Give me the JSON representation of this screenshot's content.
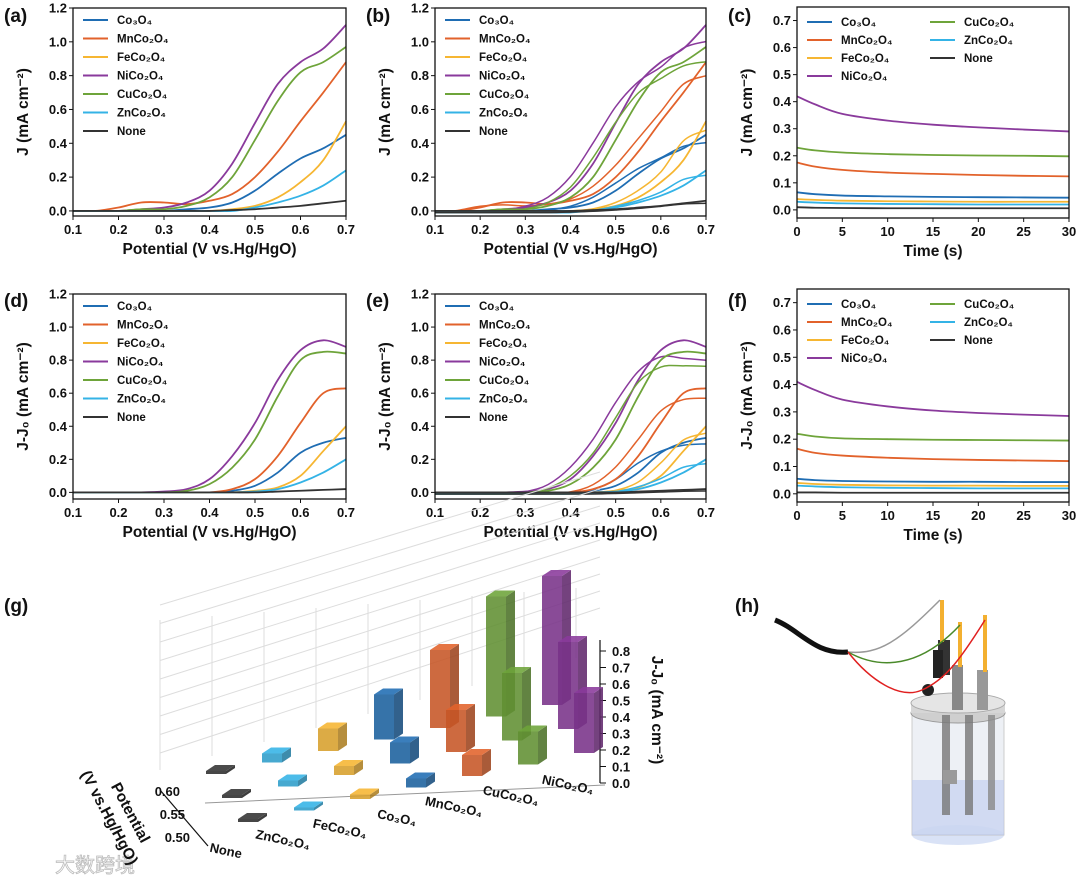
{
  "colors": {
    "Co3O4": "#1f6db3",
    "MnCo2O4": "#e2622b",
    "FeCo2O4": "#f6b632",
    "NiCo2O4": "#8a3a9c",
    "CuCo2O4": "#6ea43a",
    "ZnCo2O4": "#34b3e6",
    "None": "#333333"
  },
  "watermark": "大数跨境",
  "chart_data": [
    {
      "panel": "(a)",
      "type": "line",
      "xlabel": "Potential (V vs.Hg/HgO)",
      "ylabel": "J (mA cm⁻²)",
      "xlim": [
        0.1,
        0.7
      ],
      "ylim": [
        -0.03,
        1.2
      ],
      "xticks": [
        "0.1",
        "0.2",
        "0.3",
        "0.4",
        "0.5",
        "0.6",
        "0.7"
      ],
      "yticks": [
        "0.0",
        "0.2",
        "0.4",
        "0.6",
        "0.8",
        "1.0",
        "1.2"
      ],
      "legend": "top-left",
      "loop": false,
      "x": [
        0.1,
        0.15,
        0.2,
        0.25,
        0.3,
        0.35,
        0.4,
        0.45,
        0.5,
        0.55,
        0.6,
        0.65,
        0.7
      ],
      "series": [
        {
          "key": "Co3O4",
          "name": "Co₃O₄",
          "y": [
            0,
            0,
            0,
            0,
            0,
            0.01,
            0.02,
            0.05,
            0.12,
            0.22,
            0.31,
            0.37,
            0.45
          ]
        },
        {
          "key": "MnCo2O4",
          "name": "MnCo₂O₄",
          "y": [
            0,
            0,
            0.02,
            0.05,
            0.05,
            0.04,
            0.06,
            0.1,
            0.2,
            0.35,
            0.53,
            0.7,
            0.88
          ]
        },
        {
          "key": "FeCo2O4",
          "name": "FeCo₂O₄",
          "y": [
            0,
            0,
            0,
            0,
            0,
            0,
            0,
            0.01,
            0.03,
            0.08,
            0.17,
            0.3,
            0.53
          ]
        },
        {
          "key": "NiCo2O4",
          "name": "NiCo₂O₄",
          "y": [
            0,
            0,
            0,
            0.01,
            0.02,
            0.05,
            0.12,
            0.28,
            0.52,
            0.75,
            0.88,
            0.96,
            1.1
          ]
        },
        {
          "key": "CuCo2O4",
          "name": "CuCo₂O₄",
          "y": [
            0,
            0,
            0,
            0.01,
            0.01,
            0.03,
            0.08,
            0.2,
            0.42,
            0.65,
            0.82,
            0.88,
            0.97
          ]
        },
        {
          "key": "ZnCo2O4",
          "name": "ZnCo₂O₄",
          "y": [
            0,
            0,
            0,
            0,
            0,
            0,
            0,
            0,
            0.02,
            0.05,
            0.09,
            0.15,
            0.24
          ]
        },
        {
          "key": "None",
          "name": "None",
          "y": [
            0,
            0,
            0,
            0,
            0,
            0,
            0,
            0.005,
            0.01,
            0.02,
            0.03,
            0.045,
            0.06
          ]
        }
      ]
    },
    {
      "panel": "(b)",
      "type": "line",
      "xlabel": "Potential (V vs.Hg/HgO)",
      "ylabel": "J (mA cm⁻²)",
      "xlim": [
        0.1,
        0.7
      ],
      "ylim": [
        -0.03,
        1.2
      ],
      "xticks": [
        "0.1",
        "0.2",
        "0.3",
        "0.4",
        "0.5",
        "0.6",
        "0.7"
      ],
      "yticks": [
        "0.0",
        "0.2",
        "0.4",
        "0.6",
        "0.8",
        "1.0",
        "1.2"
      ],
      "legend": "top-left",
      "loop": true,
      "x": [
        0.1,
        0.15,
        0.2,
        0.25,
        0.3,
        0.35,
        0.4,
        0.45,
        0.5,
        0.55,
        0.6,
        0.65,
        0.7
      ],
      "series": [
        {
          "key": "Co3O4",
          "name": "Co₃O₄",
          "y": [
            0,
            0,
            0,
            0,
            0,
            0.01,
            0.02,
            0.05,
            0.12,
            0.22,
            0.31,
            0.37,
            0.45
          ]
        },
        {
          "key": "MnCo2O4",
          "name": "MnCo₂O₄",
          "y": [
            0,
            0,
            0.02,
            0.05,
            0.05,
            0.04,
            0.06,
            0.1,
            0.2,
            0.35,
            0.53,
            0.7,
            0.88
          ]
        },
        {
          "key": "FeCo2O4",
          "name": "FeCo₂O₄",
          "y": [
            0,
            0,
            0,
            0,
            0,
            0,
            0,
            0.01,
            0.03,
            0.08,
            0.17,
            0.3,
            0.53
          ]
        },
        {
          "key": "NiCo2O4",
          "name": "NiCo₂O₄",
          "y": [
            0,
            0,
            0,
            0.01,
            0.02,
            0.05,
            0.12,
            0.28,
            0.52,
            0.75,
            0.88,
            0.96,
            1.1
          ]
        },
        {
          "key": "CuCo2O4",
          "name": "CuCo₂O₄",
          "y": [
            0,
            0,
            0,
            0.01,
            0.01,
            0.03,
            0.08,
            0.2,
            0.42,
            0.65,
            0.82,
            0.88,
            0.97
          ]
        },
        {
          "key": "ZnCo2O4",
          "name": "ZnCo₂O₄",
          "y": [
            0,
            0,
            0,
            0,
            0,
            0,
            0,
            0,
            0.02,
            0.05,
            0.09,
            0.15,
            0.24
          ]
        },
        {
          "key": "None",
          "name": "None",
          "y": [
            0,
            0,
            0,
            0,
            0,
            0,
            0,
            0.005,
            0.01,
            0.02,
            0.03,
            0.045,
            0.06
          ]
        }
      ]
    },
    {
      "panel": "(c)",
      "type": "line",
      "xlabel": "Time (s)",
      "ylabel": "J (mA cm⁻²)",
      "xlim": [
        0,
        30
      ],
      "ylim": [
        -0.03,
        0.75
      ],
      "xticks": [
        "0",
        "5",
        "10",
        "15",
        "20",
        "25",
        "30"
      ],
      "yticks": [
        "0.0",
        "0.1",
        "0.2",
        "0.3",
        "0.4",
        "0.5",
        "0.6",
        "0.7"
      ],
      "legend": "top-two-column",
      "loop": false,
      "x": [
        0,
        2,
        5,
        10,
        15,
        20,
        25,
        30
      ],
      "series": [
        {
          "key": "Co3O4",
          "name": "Co₃O₄",
          "y": [
            0.065,
            0.058,
            0.053,
            0.05,
            0.048,
            0.047,
            0.046,
            0.045
          ]
        },
        {
          "key": "MnCo2O4",
          "name": "MnCo₂O₄",
          "y": [
            0.175,
            0.16,
            0.148,
            0.138,
            0.133,
            0.129,
            0.126,
            0.124
          ]
        },
        {
          "key": "FeCo2O4",
          "name": "FeCo₂O₄",
          "y": [
            0.04,
            0.037,
            0.034,
            0.032,
            0.031,
            0.03,
            0.03,
            0.03
          ]
        },
        {
          "key": "NiCo2O4",
          "name": "NiCo₂O₄",
          "y": [
            0.42,
            0.39,
            0.355,
            0.33,
            0.315,
            0.305,
            0.297,
            0.29
          ]
        },
        {
          "key": "CuCo2O4",
          "name": "CuCo₂O₄",
          "y": [
            0.23,
            0.22,
            0.212,
            0.206,
            0.203,
            0.201,
            0.2,
            0.198
          ]
        },
        {
          "key": "ZnCo2O4",
          "name": "ZnCo₂O₄",
          "y": [
            0.03,
            0.027,
            0.024,
            0.022,
            0.021,
            0.02,
            0.02,
            0.02
          ]
        },
        {
          "key": "None",
          "name": "None",
          "y": [
            0.01,
            0.008,
            0.007,
            0.006,
            0.006,
            0.006,
            0.006,
            0.006
          ]
        }
      ]
    },
    {
      "panel": "(d)",
      "type": "line",
      "xlabel": "Potential (V vs.Hg/HgO)",
      "ylabel": "J-J₀ (mA cm⁻²)",
      "xlim": [
        0.1,
        0.7
      ],
      "ylim": [
        -0.04,
        1.2
      ],
      "xticks": [
        "0.1",
        "0.2",
        "0.3",
        "0.4",
        "0.5",
        "0.6",
        "0.7"
      ],
      "yticks": [
        "0.0",
        "0.2",
        "0.4",
        "0.6",
        "0.8",
        "1.0",
        "1.2"
      ],
      "legend": "top-left",
      "loop": false,
      "x": [
        0.1,
        0.15,
        0.2,
        0.25,
        0.3,
        0.35,
        0.4,
        0.45,
        0.5,
        0.55,
        0.6,
        0.65,
        0.7
      ],
      "series": [
        {
          "key": "Co3O4",
          "name": "Co₃O₄",
          "y": [
            0,
            0,
            0,
            0,
            0,
            0,
            0,
            0.01,
            0.04,
            0.12,
            0.24,
            0.3,
            0.33
          ]
        },
        {
          "key": "MnCo2O4",
          "name": "MnCo₂O₄",
          "y": [
            0,
            0,
            0,
            0,
            0,
            0,
            0,
            0.02,
            0.08,
            0.22,
            0.42,
            0.6,
            0.63
          ]
        },
        {
          "key": "FeCo2O4",
          "name": "FeCo₂O₄",
          "y": [
            0,
            0,
            0,
            0,
            0,
            0,
            0,
            0,
            0.01,
            0.03,
            0.1,
            0.25,
            0.4
          ]
        },
        {
          "key": "NiCo2O4",
          "name": "NiCo₂O₄",
          "y": [
            0,
            0,
            0,
            0,
            0.005,
            0.02,
            0.08,
            0.22,
            0.42,
            0.68,
            0.86,
            0.92,
            0.88
          ]
        },
        {
          "key": "CuCo2O4",
          "name": "CuCo₂O₄",
          "y": [
            0,
            0,
            0,
            0,
            0,
            0.01,
            0.05,
            0.15,
            0.32,
            0.58,
            0.8,
            0.85,
            0.84
          ]
        },
        {
          "key": "ZnCo2O4",
          "name": "ZnCo₂O₄",
          "y": [
            0,
            0,
            0,
            0,
            0,
            0,
            0,
            0,
            0.005,
            0.02,
            0.06,
            0.12,
            0.2
          ]
        },
        {
          "key": "None",
          "name": "None",
          "y": [
            0,
            0,
            0,
            0,
            0,
            0,
            0,
            0,
            0,
            0.005,
            0.01,
            0.015,
            0.02
          ]
        }
      ]
    },
    {
      "panel": "(e)",
      "type": "line",
      "xlabel": "Potential (V vs.Hg/HgO)",
      "ylabel": "J-J₀ (mA cm⁻²)",
      "xlim": [
        0.1,
        0.7
      ],
      "ylim": [
        -0.04,
        1.2
      ],
      "xticks": [
        "0.1",
        "0.2",
        "0.3",
        "0.4",
        "0.5",
        "0.6",
        "0.7"
      ],
      "yticks": [
        "0.0",
        "0.2",
        "0.4",
        "0.6",
        "0.8",
        "1.0",
        "1.2"
      ],
      "legend": "top-left",
      "loop": true,
      "x": [
        0.1,
        0.15,
        0.2,
        0.25,
        0.3,
        0.35,
        0.4,
        0.45,
        0.5,
        0.55,
        0.6,
        0.65,
        0.7
      ],
      "series": [
        {
          "key": "Co3O4",
          "name": "Co₃O₄",
          "y": [
            0,
            0,
            0,
            0,
            0,
            0,
            0,
            0.01,
            0.04,
            0.12,
            0.24,
            0.3,
            0.33
          ]
        },
        {
          "key": "MnCo2O4",
          "name": "MnCo₂O₄",
          "y": [
            0,
            0,
            0,
            0,
            0,
            0,
            0,
            0.02,
            0.08,
            0.22,
            0.42,
            0.6,
            0.63
          ]
        },
        {
          "key": "FeCo2O4",
          "name": "FeCo₂O₄",
          "y": [
            0,
            0,
            0,
            0,
            0,
            0,
            0,
            0,
            0.01,
            0.03,
            0.1,
            0.25,
            0.4
          ]
        },
        {
          "key": "NiCo2O4",
          "name": "NiCo₂O₄",
          "y": [
            0,
            0,
            0,
            0,
            0.005,
            0.02,
            0.08,
            0.22,
            0.42,
            0.68,
            0.86,
            0.92,
            0.88
          ]
        },
        {
          "key": "CuCo2O4",
          "name": "CuCo₂O₄",
          "y": [
            0,
            0,
            0,
            0,
            0,
            0.01,
            0.05,
            0.15,
            0.32,
            0.58,
            0.8,
            0.85,
            0.84
          ]
        },
        {
          "key": "ZnCo2O4",
          "name": "ZnCo₂O₄",
          "y": [
            0,
            0,
            0,
            0,
            0,
            0,
            0,
            0,
            0.005,
            0.02,
            0.06,
            0.12,
            0.2
          ]
        },
        {
          "key": "None",
          "name": "None",
          "y": [
            0,
            0,
            0,
            0,
            0,
            0,
            0,
            0,
            0,
            0.005,
            0.01,
            0.015,
            0.02
          ]
        }
      ]
    },
    {
      "panel": "(f)",
      "type": "line",
      "xlabel": "Time (s)",
      "ylabel": "J-J₀ (mA cm⁻²)",
      "xlim": [
        0,
        30
      ],
      "ylim": [
        -0.03,
        0.75
      ],
      "xticks": [
        "0",
        "5",
        "10",
        "15",
        "20",
        "25",
        "30"
      ],
      "yticks": [
        "0.0",
        "0.1",
        "0.2",
        "0.3",
        "0.4",
        "0.5",
        "0.6",
        "0.7"
      ],
      "legend": "top-two-column",
      "loop": false,
      "x": [
        0,
        2,
        5,
        10,
        15,
        20,
        25,
        30
      ],
      "series": [
        {
          "key": "Co3O4",
          "name": "Co₃O₄",
          "y": [
            0.055,
            0.05,
            0.047,
            0.045,
            0.044,
            0.044,
            0.043,
            0.043
          ]
        },
        {
          "key": "MnCo2O4",
          "name": "MnCo₂O₄",
          "y": [
            0.165,
            0.15,
            0.14,
            0.132,
            0.127,
            0.124,
            0.122,
            0.12
          ]
        },
        {
          "key": "FeCo2O4",
          "name": "FeCo₂O₄",
          "y": [
            0.04,
            0.036,
            0.033,
            0.031,
            0.03,
            0.03,
            0.029,
            0.029
          ]
        },
        {
          "key": "NiCo2O4",
          "name": "NiCo₂O₄",
          "y": [
            0.41,
            0.38,
            0.345,
            0.32,
            0.305,
            0.296,
            0.29,
            0.285
          ]
        },
        {
          "key": "CuCo2O4",
          "name": "CuCo₂O₄",
          "y": [
            0.22,
            0.21,
            0.203,
            0.2,
            0.198,
            0.197,
            0.196,
            0.195
          ]
        },
        {
          "key": "ZnCo2O4",
          "name": "ZnCo₂O₄",
          "y": [
            0.03,
            0.027,
            0.024,
            0.022,
            0.021,
            0.02,
            0.02,
            0.02
          ]
        },
        {
          "key": "None",
          "name": "None",
          "y": [
            0.005,
            0.005,
            0.004,
            0.004,
            0.004,
            0.004,
            0.004,
            0.004
          ]
        }
      ]
    },
    {
      "panel": "(g)",
      "type": "bar3d",
      "zlabel": "J-J₀ (mA cm⁻²)",
      "ylabel_line1": "Potential",
      "ylabel_line2": "(V vs.Hg/HgO)",
      "zticks": [
        "0.0",
        "0.1",
        "0.2",
        "0.3",
        "0.4",
        "0.5",
        "0.6",
        "0.7",
        "0.8"
      ],
      "zlim": [
        0,
        0.8
      ],
      "potentials": [
        "0.50",
        "0.55",
        "0.60"
      ],
      "categories": [
        {
          "key": "None",
          "name": "None"
        },
        {
          "key": "ZnCo2O4",
          "name": "ZnCo₂O₄"
        },
        {
          "key": "FeCo2O4",
          "name": "FeCo₂O₄"
        },
        {
          "key": "Co3O4",
          "name": "Co₃O₄"
        },
        {
          "key": "MnCo2O4",
          "name": "MnCo₂O₄"
        },
        {
          "key": "CuCo2O4",
          "name": "CuCo₂O₄"
        },
        {
          "key": "NiCo2O4",
          "name": "NiCo₂O₄"
        }
      ],
      "values": [
        [
          0.01,
          0.01,
          0.01
        ],
        [
          0.02,
          0.04,
          0.06
        ],
        [
          0.03,
          0.06,
          0.15
        ],
        [
          0.06,
          0.14,
          0.3
        ],
        [
          0.14,
          0.28,
          0.52
        ],
        [
          0.22,
          0.45,
          0.8
        ],
        [
          0.4,
          0.58,
          0.86
        ]
      ]
    }
  ],
  "schematic": {
    "panel": "(h)"
  }
}
